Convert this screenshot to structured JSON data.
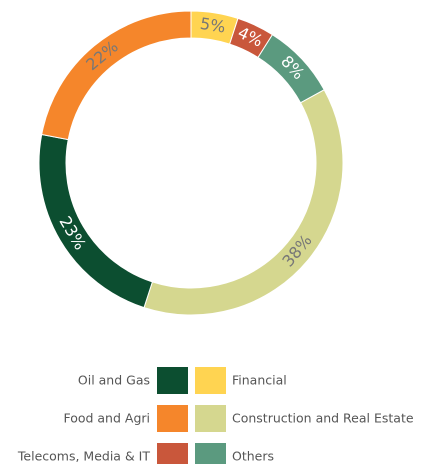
{
  "chart_data": {
    "type": "donut",
    "categories": [
      "Financial",
      "Telecoms, Media & IT",
      "Others",
      "Construction and Real Estate",
      "Oil and Gas",
      "Food and Agri"
    ],
    "values": [
      5,
      4,
      8,
      38,
      23,
      22
    ],
    "value_labels": [
      "5%",
      "4%",
      "8%",
      "38%",
      "23%",
      "22%"
    ],
    "colors": [
      "#ffd451",
      "#c9573b",
      "#5b9a7f",
      "#d5d78f",
      "#0c4e30",
      "#f5862b"
    ]
  }
}
